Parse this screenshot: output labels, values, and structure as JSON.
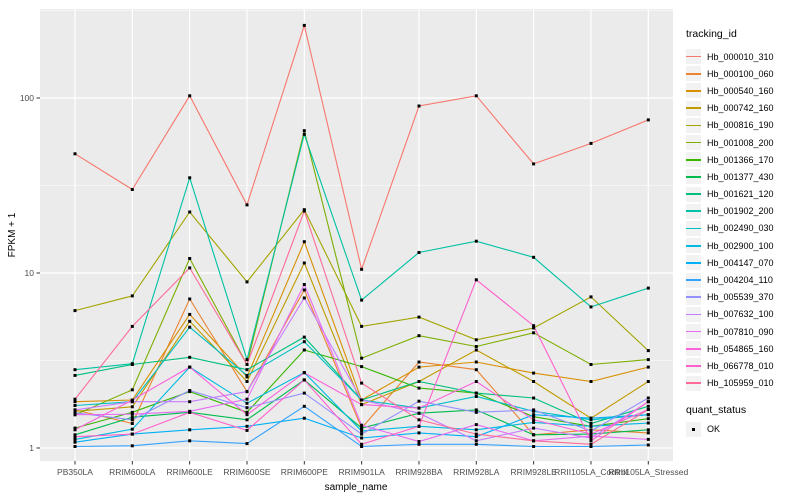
{
  "chart_data": {
    "type": "line",
    "title": "",
    "xlabel": "sample_name",
    "ylabel": "FPKM + 1",
    "y_scale": "log10",
    "y_ticks": [
      1,
      10,
      100
    ],
    "ylim": [
      1,
      320
    ],
    "grid": true,
    "legend_position": "right",
    "legend_title": "tracking_id",
    "quant_legend": {
      "title": "quant_status",
      "items": [
        "OK"
      ]
    },
    "point_shape": "black-square",
    "categories": [
      "PB350LA",
      "RRIM600LA",
      "RRIM600LE",
      "RRIM600SE",
      "RRIM600PE",
      "RRIM901LA",
      "RRIM928BA",
      "RRIM928LA",
      "RRIM928LE",
      "RRII105LA_Control",
      "RRII105LA_Stressed"
    ],
    "series": [
      {
        "name": "Hb_000010_310",
        "color": "#F8766D",
        "values": [
          48,
          30,
          103,
          24.5,
          260,
          10.5,
          90,
          103,
          42,
          55,
          75
        ]
      },
      {
        "name": "Hb_000100_060",
        "color": "#EA8331",
        "values": [
          1.65,
          1.38,
          7.1,
          2.1,
          8.0,
          1.3,
          3.1,
          2.8,
          1.19,
          1.27,
          1.22
        ]
      },
      {
        "name": "Hb_000540_160",
        "color": "#D89000",
        "values": [
          1.84,
          1.88,
          5.8,
          2.55,
          15.1,
          1.88,
          2.9,
          3.1,
          2.68,
          2.4,
          2.9
        ]
      },
      {
        "name": "Hb_000742_160",
        "color": "#C09B00",
        "values": [
          1.62,
          1.72,
          5.3,
          2.4,
          11.4,
          1.77,
          2.4,
          3.63,
          2.4,
          1.48,
          2.4
        ]
      },
      {
        "name": "Hb_000816_190",
        "color": "#A3A500",
        "values": [
          6.1,
          7.4,
          22.3,
          8.9,
          23,
          4.95,
          5.6,
          4.15,
          4.85,
          7.3,
          3.6
        ]
      },
      {
        "name": "Hb_001008_200",
        "color": "#7CAE00",
        "values": [
          1.55,
          2.15,
          12.1,
          3.0,
          65,
          3.26,
          4.38,
          3.8,
          4.55,
          3.0,
          3.2
        ]
      },
      {
        "name": "Hb_001366_170",
        "color": "#39B600",
        "values": [
          1.3,
          1.6,
          2.1,
          1.6,
          3.63,
          2.92,
          2.2,
          2.06,
          1.51,
          1.33,
          1.47
        ]
      },
      {
        "name": "Hb_001377_430",
        "color": "#00BB4E",
        "values": [
          1.19,
          1.5,
          1.6,
          1.45,
          2.45,
          1.3,
          1.58,
          1.65,
          1.19,
          1.2,
          1.27
        ]
      },
      {
        "name": "Hb_001621_120",
        "color": "#00BF7D",
        "values": [
          2.6,
          3.0,
          3.3,
          2.8,
          4.3,
          1.88,
          2.4,
          2.06,
          1.93,
          1.38,
          1.73
        ]
      },
      {
        "name": "Hb_001902_200",
        "color": "#00C1A3",
        "values": [
          2.8,
          3.03,
          35,
          3.2,
          62,
          7.0,
          13.1,
          15.2,
          12.3,
          6.4,
          8.2
        ]
      },
      {
        "name": "Hb_002490_030",
        "color": "#00BFC4",
        "values": [
          1.75,
          1.84,
          4.9,
          2.6,
          4.05,
          1.88,
          1.69,
          1.97,
          1.62,
          1.45,
          1.55
        ]
      },
      {
        "name": "Hb_002900_100",
        "color": "#00BAE0",
        "values": [
          1.12,
          1.28,
          2.9,
          1.8,
          2.7,
          1.25,
          1.33,
          1.27,
          1.4,
          1.33,
          1.39
        ]
      },
      {
        "name": "Hb_004147_070",
        "color": "#00B0F6",
        "values": [
          1.08,
          1.2,
          1.27,
          1.33,
          1.48,
          1.14,
          1.22,
          1.16,
          1.55,
          1.48,
          1.55
        ]
      },
      {
        "name": "Hb_004204_110",
        "color": "#35A2FF",
        "values": [
          1.02,
          1.03,
          1.1,
          1.06,
          1.73,
          1.02,
          1.05,
          1.05,
          1.02,
          1.02,
          1.04
        ]
      },
      {
        "name": "Hb_005539_370",
        "color": "#9590FF",
        "values": [
          1.59,
          1.45,
          2.13,
          1.7,
          2.06,
          1.2,
          1.85,
          1.6,
          1.65,
          1.25,
          1.93
        ]
      },
      {
        "name": "Hb_007632_100",
        "color": "#C77CFF",
        "values": [
          1.65,
          1.84,
          1.84,
          2.1,
          7.2,
          1.88,
          1.58,
          1.1,
          1.3,
          1.14,
          1.84
        ]
      },
      {
        "name": "Hb_007810_090",
        "color": "#E76BF3",
        "values": [
          1.55,
          1.56,
          1.62,
          1.9,
          8.6,
          1.35,
          1.09,
          1.36,
          1.1,
          1.17,
          1.12
        ]
      },
      {
        "name": "Hb_054865_160",
        "color": "#FA62DB",
        "values": [
          1.27,
          1.88,
          2.9,
          1.55,
          2.69,
          1.77,
          1.69,
          2.4,
          1.45,
          1.2,
          1.66
        ]
      },
      {
        "name": "Hb_066778_010",
        "color": "#FF61CC",
        "values": [
          1.16,
          1.2,
          1.6,
          1.26,
          2.45,
          1.05,
          1.33,
          9.15,
          5.0,
          1.1,
          1.84
        ]
      },
      {
        "name": "Hb_105959_010",
        "color": "#FF6A98",
        "values": [
          1.9,
          4.95,
          10.7,
          3.0,
          22.6,
          2.35,
          1.45,
          1.2,
          1.1,
          1.05,
          1.66
        ]
      }
    ]
  },
  "colors": {
    "panel_bg": "#EBEBEB",
    "grid": "#FFFFFF",
    "tick": "#333333",
    "tick_label": "#4D4D4D",
    "axis_title": "#000000",
    "legend_key_bg": "#F2F2F2",
    "point": "#000000"
  }
}
